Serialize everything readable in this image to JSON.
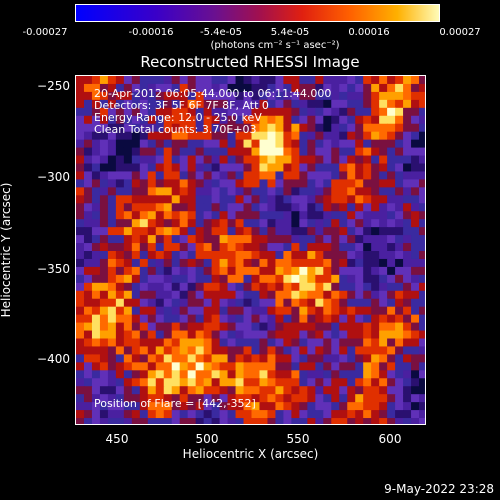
{
  "colorbar": {
    "ticks": [
      "-0.00027",
      "-0.00016",
      "-5.4e-05",
      "5.4e-05",
      "0.00016",
      "0.00027"
    ],
    "units": "(photons cm⁻² s⁻¹ asec⁻²)"
  },
  "chart_data": {
    "type": "heatmap",
    "title": "Reconstructed RHESSI Image",
    "xlabel": "Heliocentric X (arcsec)",
    "ylabel": "Heliocentric Y (arcsec)",
    "xlim": [
      427,
      620
    ],
    "ylim": [
      -436,
      -243
    ],
    "x_ticks": [
      "450",
      "500",
      "550",
      "600"
    ],
    "y_ticks": [
      "−250",
      "−300",
      "−350",
      "−400"
    ],
    "value_range": [
      -0.00027,
      0.00027
    ]
  },
  "annotations": {
    "time_range": "20-Apr-2012 06:05:44.000 to 06:11:44.000",
    "detectors": "Detectors: 3F 5F 6F 7F 8F, Att 0",
    "energy_range": "Energy Range: 12.0 - 25.0 keV",
    "clean_counts": "Clean     Total counts: 3.70E+03",
    "flare_position": "Position of Flare = [442,-352]"
  },
  "footer": {
    "date": "9-May-2022 23:28"
  }
}
